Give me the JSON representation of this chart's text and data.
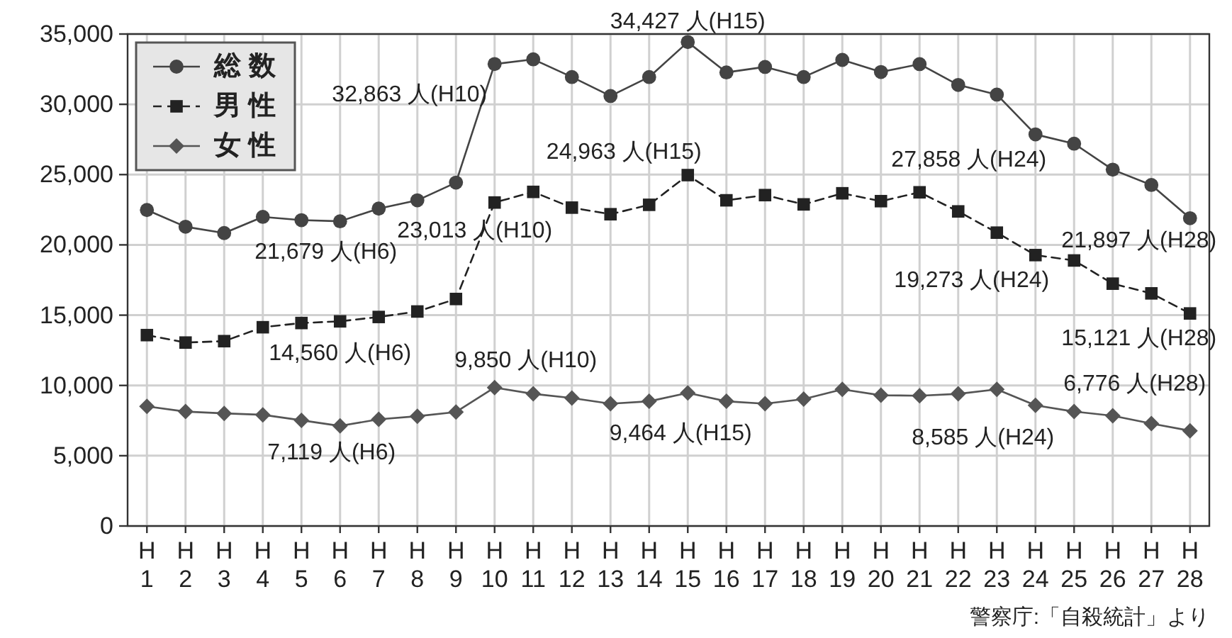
{
  "chart_data": {
    "type": "line",
    "categories": [
      "H\n1",
      "H\n2",
      "H\n3",
      "H\n4",
      "H\n5",
      "H\n6",
      "H\n7",
      "H\n8",
      "H\n9",
      "H\n10",
      "H\n11",
      "H\n12",
      "H\n13",
      "H\n14",
      "H\n15",
      "H\n16",
      "H\n17",
      "H\n18",
      "H\n19",
      "H\n20",
      "H\n21",
      "H\n22",
      "H\n23",
      "H\n24",
      "H\n25",
      "H\n26",
      "H\n27",
      "H\n28"
    ],
    "series": [
      {
        "name": "総 数",
        "color": "#444444",
        "marker": "circle",
        "line_style": "solid",
        "values": [
          22480,
          21290,
          20840,
          21990,
          21760,
          21679,
          22580,
          23170,
          24430,
          32863,
          33200,
          31940,
          30590,
          31940,
          34427,
          32270,
          32660,
          31940,
          33160,
          32300,
          32860,
          31380,
          30690,
          27858,
          27200,
          25350,
          24260,
          21897
        ]
      },
      {
        "name": "男 性",
        "color": "#222222",
        "marker": "square",
        "line_style": "dashed",
        "values": [
          13580,
          13050,
          13150,
          14140,
          14440,
          14560,
          14870,
          15260,
          16150,
          23013,
          23770,
          22650,
          22180,
          22850,
          24963,
          23170,
          23540,
          22880,
          23670,
          23110,
          23740,
          22380,
          20870,
          19273,
          18890,
          17240,
          16550,
          15121
        ]
      },
      {
        "name": "女 性",
        "color": "#555555",
        "marker": "diamond",
        "line_style": "solid",
        "values": [
          8510,
          8140,
          8010,
          7910,
          7520,
          7119,
          7590,
          7810,
          8110,
          9850,
          9400,
          9100,
          8700,
          8870,
          9464,
          8870,
          8700,
          9030,
          9720,
          9300,
          9270,
          9400,
          9720,
          8585,
          8140,
          7840,
          7290,
          6776
        ]
      }
    ],
    "ylim": [
      0,
      35000
    ],
    "yticks": [
      0,
      {
        "value": 5000,
        "label": "5,000"
      },
      {
        "value": 10000,
        "label": "10,000"
      },
      {
        "value": 15000,
        "label": "15,000"
      },
      {
        "value": 20000,
        "label": "20,000"
      },
      {
        "value": 25000,
        "label": "25,000"
      },
      {
        "value": 30000,
        "label": "30,000"
      },
      {
        "value": 35000,
        "label": "35,000"
      }
    ],
    "grid": true,
    "legend": "top left",
    "annotations": [
      {
        "text": "34,427 人(H15)",
        "x": "H\n15",
        "y": 34427
      },
      {
        "text": "32,863 人(H10)",
        "x": "H\n10",
        "y": 32863
      },
      {
        "text": "21,679 人(H6)",
        "x": "H\n6",
        "y": 21679
      },
      {
        "text": "23,013 人(H10)",
        "x": "H\n10",
        "y": 23013
      },
      {
        "text": "24,963 人(H15)",
        "x": "H\n15",
        "y": 24963
      },
      {
        "text": "27,858 人(H24)",
        "x": "H\n24",
        "y": 27858
      },
      {
        "text": "21,897 人(H28)",
        "x": "H\n28",
        "y": 21897
      },
      {
        "text": "19,273 人(H24)",
        "x": "H\n24",
        "y": 19273
      },
      {
        "text": "15,121 人(H28)",
        "x": "H\n28",
        "y": 15121
      },
      {
        "text": "14,560 人(H6)",
        "x": "H\n6",
        "y": 14560
      },
      {
        "text": "9,850 人(H10)",
        "x": "H\n10",
        "y": 9850
      },
      {
        "text": "7,119 人(H6)",
        "x": "H\n6",
        "y": 7119
      },
      {
        "text": "9,464 人(H15)",
        "x": "H\n15",
        "y": 9464
      },
      {
        "text": "8,585 人(H24)",
        "x": "H\n24",
        "y": 8585
      },
      {
        "text": "6,776 人(H28)",
        "x": "H\n28",
        "y": 6776
      },
      "警察庁:「自殺統計」より"
    ]
  }
}
